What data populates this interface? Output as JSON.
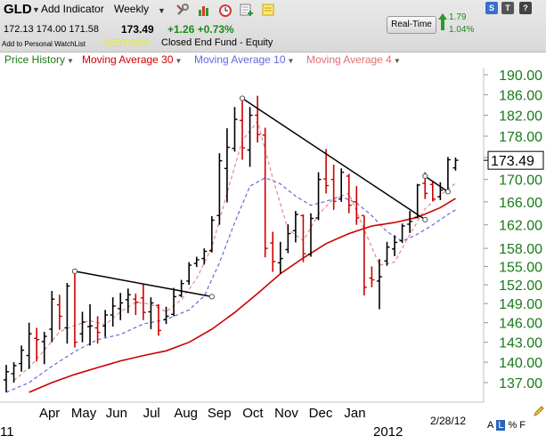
{
  "header": {
    "symbol": "GLD",
    "add_indicator": "Add Indicator",
    "period": "Weekly",
    "ohlc": "172.13 174.00 171.58",
    "last": "173.49",
    "change": "+1.26 +0.73%",
    "watchlist": "Add to Personal WatchList",
    "optionable": "Optionable",
    "description": "Closed End Fund - Equity",
    "realtime_button": "Real-Time",
    "realtime_change": "1.79",
    "realtime_pct": "1.04%",
    "icons": [
      "wrench-icon",
      "bar-chart-icon",
      "alarm-clock-icon",
      "add-to-list-icon",
      "note-icon"
    ],
    "square_buttons": [
      "S",
      "T",
      "?"
    ]
  },
  "legend": [
    {
      "label": "Price History",
      "color": "#1a7a1a"
    },
    {
      "label": "Moving Average 30",
      "color": "#cc0000"
    },
    {
      "label": "Moving Average 10",
      "color": "#6666dd"
    },
    {
      "label": "Moving Average 4",
      "color": "#e07070"
    }
  ],
  "chart_data": {
    "type": "ohlc",
    "y_ticks": [
      "190.00",
      "186.00",
      "182.00",
      "178.00",
      "174.00",
      "170.00",
      "166.00",
      "162.00",
      "158.00",
      "155.00",
      "152.00",
      "149.00",
      "146.00",
      "143.00",
      "140.00",
      "137.00"
    ],
    "x_labels": [
      "Apr",
      "May",
      "Jun",
      "Jul",
      "Aug",
      "Sep",
      "Oct",
      "Nov",
      "Dec",
      "Jan"
    ],
    "year_labels": [
      "11",
      "2012"
    ],
    "last_price_label": "173.49",
    "corner_date": "2/28/12",
    "bottom_buttons": [
      "A",
      "L",
      "%",
      "F"
    ],
    "colors": {
      "up": "#000000",
      "down": "#cc0000",
      "ma30": "#cc0000",
      "ma10": "#6666dd",
      "ma4": "#e08080",
      "trend": "#000000"
    },
    "bars": [
      {
        "o": 137.4,
        "h": 139.6,
        "l": 135.6,
        "c": 138.6
      },
      {
        "o": 138.3,
        "h": 140.0,
        "l": 137.0,
        "c": 139.5
      },
      {
        "o": 139.8,
        "h": 142.5,
        "l": 138.6,
        "c": 141.8
      },
      {
        "o": 141.0,
        "h": 146.0,
        "l": 139.0,
        "c": 144.3
      },
      {
        "o": 143.6,
        "h": 145.2,
        "l": 140.1,
        "c": 143.4
      },
      {
        "o": 143.1,
        "h": 144.6,
        "l": 139.7,
        "c": 143.9
      },
      {
        "o": 145.0,
        "h": 151.0,
        "l": 143.0,
        "c": 149.7
      },
      {
        "o": 148.8,
        "h": 150.4,
        "l": 144.9,
        "c": 147.0
      },
      {
        "o": 145.2,
        "h": 152.3,
        "l": 142.8,
        "c": 151.8
      },
      {
        "o": 154.2,
        "h": 154.2,
        "l": 142.2,
        "c": 143.0
      },
      {
        "o": 144.3,
        "h": 147.7,
        "l": 143.0,
        "c": 146.1
      },
      {
        "o": 145.4,
        "h": 148.9,
        "l": 142.5,
        "c": 145.5
      },
      {
        "o": 145.2,
        "h": 147.0,
        "l": 142.8,
        "c": 144.5
      },
      {
        "o": 145.5,
        "h": 148.0,
        "l": 143.8,
        "c": 147.2
      },
      {
        "o": 147.2,
        "h": 150.0,
        "l": 145.4,
        "c": 148.6
      },
      {
        "o": 148.2,
        "h": 150.7,
        "l": 146.4,
        "c": 149.1
      },
      {
        "o": 149.6,
        "h": 151.4,
        "l": 147.5,
        "c": 150.4
      },
      {
        "o": 149.7,
        "h": 150.6,
        "l": 147.2,
        "c": 149.2
      },
      {
        "o": 149.9,
        "h": 152.2,
        "l": 146.4,
        "c": 147.6
      },
      {
        "o": 147.7,
        "h": 150.0,
        "l": 145.0,
        "c": 149.1
      },
      {
        "o": 148.7,
        "h": 148.9,
        "l": 144.0,
        "c": 144.8
      },
      {
        "o": 146.5,
        "h": 148.5,
        "l": 145.8,
        "c": 147.0
      },
      {
        "o": 147.3,
        "h": 151.5,
        "l": 147.0,
        "c": 150.1
      },
      {
        "o": 150.3,
        "h": 152.8,
        "l": 150.0,
        "c": 152.2
      },
      {
        "o": 152.6,
        "h": 155.7,
        "l": 152.0,
        "c": 155.2
      },
      {
        "o": 155.5,
        "h": 156.6,
        "l": 154.9,
        "c": 156.1
      },
      {
        "o": 156.3,
        "h": 158.0,
        "l": 155.3,
        "c": 157.5
      },
      {
        "o": 157.6,
        "h": 163.5,
        "l": 157.3,
        "c": 162.8
      },
      {
        "o": 163.6,
        "h": 174.8,
        "l": 162.0,
        "c": 173.4
      },
      {
        "o": 172.0,
        "h": 179.5,
        "l": 165.9,
        "c": 175.9
      },
      {
        "o": 175.7,
        "h": 183.6,
        "l": 175.1,
        "c": 181.2
      },
      {
        "o": 181.0,
        "h": 185.4,
        "l": 173.6,
        "c": 175.8
      },
      {
        "o": 175.4,
        "h": 183.6,
        "l": 172.3,
        "c": 182.0
      },
      {
        "o": 182.0,
        "h": 185.8,
        "l": 176.8,
        "c": 178.3
      },
      {
        "o": 178.2,
        "h": 179.6,
        "l": 156.5,
        "c": 158.0
      },
      {
        "o": 158.9,
        "h": 160.8,
        "l": 154.1,
        "c": 155.8
      },
      {
        "o": 155.6,
        "h": 159.1,
        "l": 153.8,
        "c": 156.3
      },
      {
        "o": 157.8,
        "h": 162.1,
        "l": 157.2,
        "c": 160.5
      },
      {
        "o": 161.0,
        "h": 164.4,
        "l": 159.0,
        "c": 163.8
      },
      {
        "o": 163.6,
        "h": 163.8,
        "l": 155.7,
        "c": 157.1
      },
      {
        "o": 157.0,
        "h": 164.0,
        "l": 156.6,
        "c": 163.1
      },
      {
        "o": 163.2,
        "h": 171.3,
        "l": 162.8,
        "c": 170.0
      },
      {
        "o": 170.1,
        "h": 175.6,
        "l": 167.5,
        "c": 168.9
      },
      {
        "o": 170.0,
        "h": 172.7,
        "l": 164.6,
        "c": 166.1
      },
      {
        "o": 166.5,
        "h": 172.0,
        "l": 166.0,
        "c": 171.3
      },
      {
        "o": 170.6,
        "h": 171.0,
        "l": 164.0,
        "c": 165.4
      },
      {
        "o": 166.0,
        "h": 168.8,
        "l": 162.0,
        "c": 163.2
      },
      {
        "o": 163.6,
        "h": 163.6,
        "l": 150.3,
        "c": 151.6
      },
      {
        "o": 153.1,
        "h": 155.0,
        "l": 151.6,
        "c": 152.8
      },
      {
        "o": 152.6,
        "h": 156.2,
        "l": 148.1,
        "c": 153.3
      },
      {
        "o": 155.9,
        "h": 159.1,
        "l": 155.1,
        "c": 158.2
      },
      {
        "o": 157.9,
        "h": 160.2,
        "l": 156.7,
        "c": 159.0
      },
      {
        "o": 159.3,
        "h": 162.2,
        "l": 158.9,
        "c": 161.8
      },
      {
        "o": 162.1,
        "h": 164.4,
        "l": 160.6,
        "c": 162.6
      },
      {
        "o": 163.3,
        "h": 169.2,
        "l": 163.1,
        "c": 169.0
      },
      {
        "o": 169.3,
        "h": 171.3,
        "l": 166.5,
        "c": 167.5
      },
      {
        "o": 169.1,
        "h": 169.8,
        "l": 166.1,
        "c": 166.5
      },
      {
        "o": 166.9,
        "h": 169.5,
        "l": 166.3,
        "c": 168.1
      },
      {
        "o": 168.1,
        "h": 174.1,
        "l": 167.6,
        "c": 173.6
      },
      {
        "o": 172.1,
        "h": 174.0,
        "l": 171.6,
        "c": 173.5
      }
    ],
    "ma30": [
      {
        "i": 3,
        "v": 135.6
      },
      {
        "i": 6,
        "v": 137.0
      },
      {
        "i": 9,
        "v": 138.2
      },
      {
        "i": 12,
        "v": 139.2
      },
      {
        "i": 15,
        "v": 140.2
      },
      {
        "i": 18,
        "v": 141.0
      },
      {
        "i": 21,
        "v": 141.7
      },
      {
        "i": 24,
        "v": 143.0
      },
      {
        "i": 27,
        "v": 145.0
      },
      {
        "i": 30,
        "v": 147.6
      },
      {
        "i": 33,
        "v": 150.6
      },
      {
        "i": 36,
        "v": 153.8
      },
      {
        "i": 39,
        "v": 156.4
      },
      {
        "i": 42,
        "v": 158.8
      },
      {
        "i": 45,
        "v": 160.5
      },
      {
        "i": 48,
        "v": 161.8
      },
      {
        "i": 51,
        "v": 162.4
      },
      {
        "i": 54,
        "v": 163.3
      },
      {
        "i": 57,
        "v": 165.0
      },
      {
        "i": 59,
        "v": 166.6
      }
    ],
    "ma10": [
      {
        "i": 0,
        "v": 135.6
      },
      {
        "i": 3,
        "v": 137.0
      },
      {
        "i": 6,
        "v": 139.4
      },
      {
        "i": 9,
        "v": 141.6
      },
      {
        "i": 12,
        "v": 143.4
      },
      {
        "i": 15,
        "v": 144.2
      },
      {
        "i": 18,
        "v": 145.8
      },
      {
        "i": 21,
        "v": 146.5
      },
      {
        "i": 24,
        "v": 148.0
      },
      {
        "i": 26,
        "v": 150.2
      },
      {
        "i": 28,
        "v": 155.6
      },
      {
        "i": 30,
        "v": 162.4
      },
      {
        "i": 32,
        "v": 168.8
      },
      {
        "i": 34,
        "v": 170.3
      },
      {
        "i": 36,
        "v": 169.2
      },
      {
        "i": 38,
        "v": 167.0
      },
      {
        "i": 40,
        "v": 165.4
      },
      {
        "i": 42,
        "v": 166.1
      },
      {
        "i": 44,
        "v": 166.9
      },
      {
        "i": 46,
        "v": 165.8
      },
      {
        "i": 48,
        "v": 163.6
      },
      {
        "i": 50,
        "v": 160.8
      },
      {
        "i": 52,
        "v": 159.2
      },
      {
        "i": 54,
        "v": 160.4
      },
      {
        "i": 56,
        "v": 162.0
      },
      {
        "i": 58,
        "v": 163.8
      },
      {
        "i": 59,
        "v": 164.6
      }
    ],
    "ma4": [
      {
        "i": 1,
        "v": 137.3
      },
      {
        "i": 3,
        "v": 139.2
      },
      {
        "i": 5,
        "v": 141.8
      },
      {
        "i": 7,
        "v": 144.6
      },
      {
        "i": 9,
        "v": 145.6
      },
      {
        "i": 11,
        "v": 146.3
      },
      {
        "i": 13,
        "v": 145.7
      },
      {
        "i": 15,
        "v": 147.7
      },
      {
        "i": 17,
        "v": 149.2
      },
      {
        "i": 19,
        "v": 148.9
      },
      {
        "i": 21,
        "v": 147.7
      },
      {
        "i": 23,
        "v": 149.6
      },
      {
        "i": 25,
        "v": 153.0
      },
      {
        "i": 27,
        "v": 158.2
      },
      {
        "i": 29,
        "v": 167.6
      },
      {
        "i": 31,
        "v": 177.2
      },
      {
        "i": 33,
        "v": 180.8
      },
      {
        "i": 35,
        "v": 170.2
      },
      {
        "i": 37,
        "v": 161.2
      },
      {
        "i": 39,
        "v": 159.3
      },
      {
        "i": 41,
        "v": 163.8
      },
      {
        "i": 43,
        "v": 166.6
      },
      {
        "i": 45,
        "v": 167.5
      },
      {
        "i": 47,
        "v": 161.2
      },
      {
        "i": 49,
        "v": 155.2
      },
      {
        "i": 51,
        "v": 155.7
      },
      {
        "i": 53,
        "v": 160.4
      },
      {
        "i": 55,
        "v": 164.8
      },
      {
        "i": 57,
        "v": 167.2
      },
      {
        "i": 59,
        "v": 169.3
      }
    ],
    "trendlines": [
      {
        "from": {
          "i": 9,
          "v": 154.2
        },
        "to": {
          "i": 27,
          "v": 150.1
        },
        "markers": true
      },
      {
        "from": {
          "i": 31,
          "v": 185.3
        },
        "to": {
          "i": 55,
          "v": 162.9
        },
        "markers": true
      },
      {
        "from": {
          "i": 55,
          "v": 170.6
        },
        "to": {
          "i": 58,
          "v": 167.8
        },
        "markers": true
      }
    ]
  }
}
